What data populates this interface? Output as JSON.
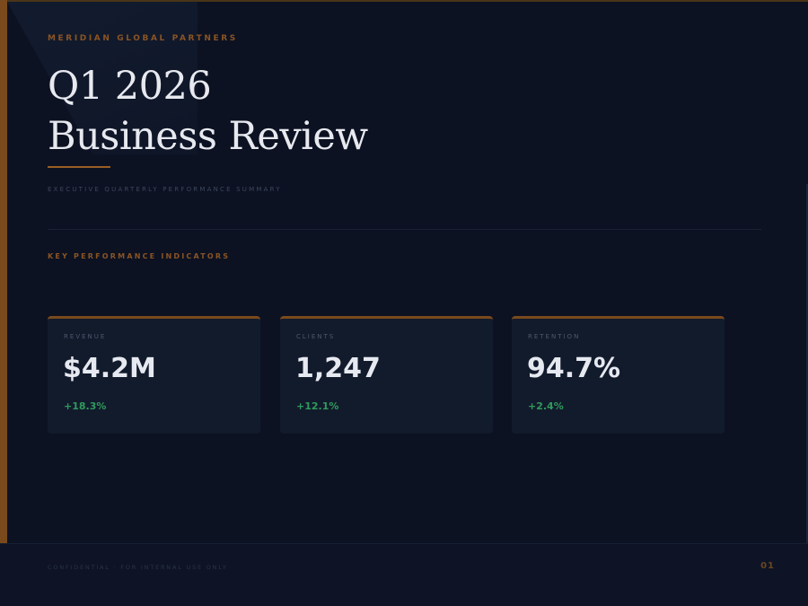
{
  "header": {
    "company": "MERIDIAN GLOBAL PARTNERS",
    "title_line1": "Q1 2026",
    "title_line2": "Business Review",
    "subtitle": "EXECUTIVE QUARTERLY PERFORMANCE SUMMARY"
  },
  "kpi_section": {
    "label": "KEY PERFORMANCE INDICATORS",
    "cards": [
      {
        "label": "REVENUE",
        "value": "$4.2M",
        "delta": "+18.3%"
      },
      {
        "label": "CLIENTS",
        "value": "1,247",
        "delta": "+12.1%"
      },
      {
        "label": "RETENTION",
        "value": "94.7%",
        "delta": "+2.4%"
      }
    ]
  },
  "footer": {
    "note": "CONFIDENTIAL · FOR INTERNAL USE ONLY",
    "page_number": "01"
  },
  "colors": {
    "background": "#0c1222",
    "accent": "#8a5424",
    "card": "#121b2c",
    "positive": "#2f9a5c",
    "title": "#e7e9ef"
  }
}
